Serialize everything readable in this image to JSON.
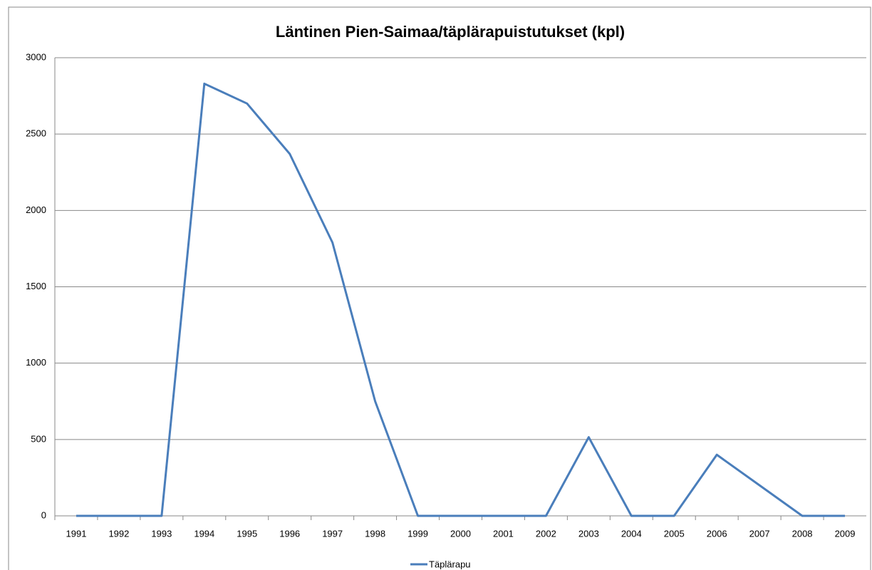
{
  "chart_data": {
    "type": "line",
    "title": "Läntinen Pien-Saimaa/täplärapuistutukset (kpl)",
    "categories": [
      "1991",
      "1992",
      "1993",
      "1994",
      "1995",
      "1996",
      "1997",
      "1998",
      "1999",
      "2000",
      "2001",
      "2002",
      "2003",
      "2004",
      "2005",
      "2006",
      "2007",
      "2008",
      "2009"
    ],
    "series": [
      {
        "name": "Täplärapu",
        "color": "#4a7ebb",
        "values": [
          0,
          0,
          0,
          2830,
          2700,
          2370,
          1790,
          750,
          0,
          0,
          0,
          0,
          515,
          0,
          0,
          400,
          200,
          0,
          0
        ]
      }
    ],
    "ylim": [
      0,
      3000
    ],
    "yticks": [
      0,
      500,
      1000,
      1500,
      2000,
      2500,
      3000
    ],
    "grid": true,
    "legend": "bottom"
  }
}
